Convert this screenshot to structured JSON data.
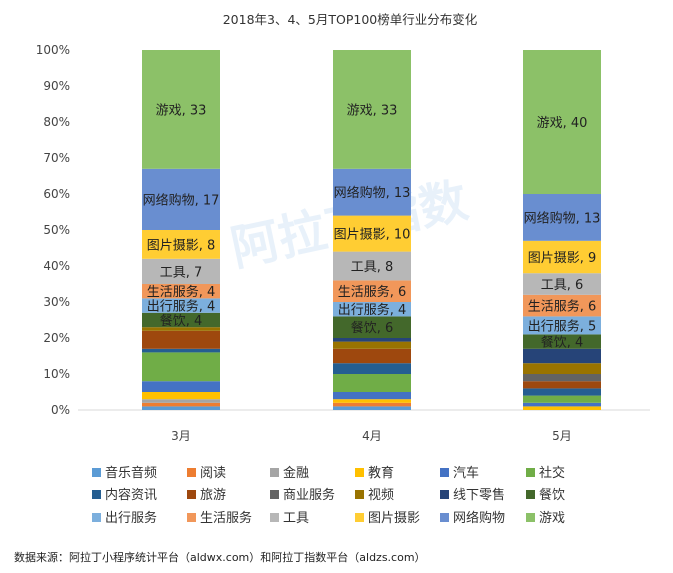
{
  "chart_data": {
    "type": "bar",
    "stacked": true,
    "percent": true,
    "title": "2018年3、4、5月TOP100榜单行业分布变化",
    "categories": [
      "3月",
      "4月",
      "5月"
    ],
    "ylim": [
      0,
      100
    ],
    "yticks": [
      "0%",
      "10%",
      "20%",
      "30%",
      "40%",
      "50%",
      "60%",
      "70%",
      "80%",
      "90%",
      "100%"
    ],
    "grid": false,
    "legend": "bottom",
    "series": [
      {
        "name": "音乐音频",
        "color": "#5B9BD5",
        "values": [
          1,
          1,
          0
        ]
      },
      {
        "name": "阅读",
        "color": "#ED7D31",
        "values": [
          1,
          1,
          0
        ]
      },
      {
        "name": "金融",
        "color": "#A5A5A5",
        "values": [
          1,
          0,
          0
        ]
      },
      {
        "name": "教育",
        "color": "#FFC000",
        "values": [
          2,
          1,
          1
        ]
      },
      {
        "name": "汽车",
        "color": "#4472C4",
        "values": [
          3,
          2,
          1
        ]
      },
      {
        "name": "社交",
        "color": "#70AD47",
        "values": [
          8,
          5,
          2
        ]
      },
      {
        "name": "内容资讯",
        "color": "#255E91",
        "values": [
          1,
          3,
          2
        ]
      },
      {
        "name": "旅游",
        "color": "#9E480E",
        "values": [
          5,
          4,
          2
        ]
      },
      {
        "name": "商业服务",
        "color": "#636363",
        "values": [
          0,
          0,
          2
        ]
      },
      {
        "name": "视频",
        "color": "#997300",
        "values": [
          1,
          2,
          3
        ]
      },
      {
        "name": "线下零售",
        "color": "#264478",
        "values": [
          0,
          1,
          4
        ]
      },
      {
        "name": "餐饮",
        "color": "#43682B",
        "values": [
          4,
          6,
          4
        ],
        "labeled": true
      },
      {
        "name": "出行服务",
        "color": "#7CAFDD",
        "values": [
          4,
          4,
          5
        ],
        "labeled": true
      },
      {
        "name": "生活服务",
        "color": "#F1975A",
        "values": [
          4,
          6,
          6
        ],
        "labeled": true
      },
      {
        "name": "工具",
        "color": "#B7B7B7",
        "values": [
          7,
          8,
          6
        ],
        "labeled": true
      },
      {
        "name": "图片摄影",
        "color": "#FFCD33",
        "values": [
          8,
          10,
          9
        ],
        "labeled": true
      },
      {
        "name": "网络购物",
        "color": "#698ED0",
        "values": [
          17,
          13,
          13
        ],
        "labeled": true
      },
      {
        "name": "游戏",
        "color": "#8CC168",
        "values": [
          33,
          33,
          40
        ],
        "labeled": true
      }
    ]
  },
  "watermark": "阿拉丁指数 ALDZS.COM",
  "footer": "数据来源：阿拉丁小程序统计平台（aldwx.com）和阿拉丁指数平台（aldzs.com）"
}
